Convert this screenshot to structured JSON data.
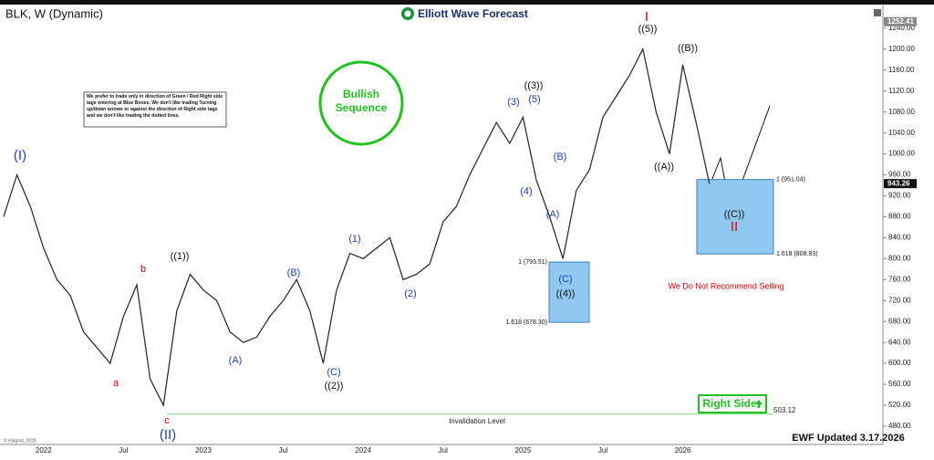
{
  "chart_data": {
    "type": "line",
    "title": "BLK, W (Dynamic)",
    "brand": "Elliott Wave Forecast",
    "categories": [
      null,
      null,
      null,
      "2022",
      null,
      null,
      null,
      null,
      null,
      "Jul",
      null,
      null,
      null,
      null,
      null,
      "2023",
      null,
      null,
      null,
      null,
      null,
      "Jul",
      null,
      null,
      null,
      null,
      null,
      "2024",
      null,
      null,
      null,
      null,
      null,
      "Jul",
      null,
      null,
      null,
      null,
      null,
      "2025",
      null,
      null,
      null,
      null,
      null,
      "Jul",
      null,
      null,
      null,
      null,
      null,
      "2026",
      null,
      null
    ],
    "values": [
      880,
      960,
      900,
      820,
      760,
      730,
      660,
      630,
      600,
      690,
      750,
      570,
      520,
      700,
      770,
      740,
      720,
      660,
      640,
      650,
      690,
      720,
      760,
      700,
      600,
      740,
      810,
      800,
      820,
      840,
      760,
      770,
      790,
      870,
      900,
      960,
      1010,
      1060,
      1020,
      1070,
      950,
      880,
      800,
      930,
      970,
      1070,
      1110,
      1150,
      1200,
      1080,
      1000,
      1170,
      1060,
      943
    ],
    "color": "#222222",
    "ylim": [
      445.1,
      1279.9
    ],
    "yticks": [
      {
        "value": 480,
        "label": "480.00"
      },
      {
        "value": 520,
        "label": "520.00"
      },
      {
        "value": 560,
        "label": "560.00"
      },
      {
        "value": 600,
        "label": "600.00"
      },
      {
        "value": 640,
        "label": "640.00"
      },
      {
        "value": 680,
        "label": "680.00"
      },
      {
        "value": 720,
        "label": "720.00"
      },
      {
        "value": 760,
        "label": "760.00"
      },
      {
        "value": 800,
        "label": "800.00"
      },
      {
        "value": 840,
        "label": "840.00"
      },
      {
        "value": 880,
        "label": "880.00"
      },
      {
        "value": 920,
        "label": "920.00"
      },
      {
        "value": 960,
        "label": "960.00"
      },
      {
        "value": 1000,
        "label": "1000.00"
      },
      {
        "value": 1040,
        "label": "1040.00"
      },
      {
        "value": 1080,
        "label": "1080.00"
      },
      {
        "value": 1120,
        "label": "1120.00"
      },
      {
        "value": 1160,
        "label": "1160.00"
      },
      {
        "value": 1200,
        "label": "1200.00"
      },
      {
        "value": 1240,
        "label": "1240.00"
      }
    ],
    "price_labels": [
      1252.41,
      943.26
    ],
    "fib_levels": [
      {
        "value": 793.51,
        "label": "1 (793.51)"
      },
      {
        "value": 678.3,
        "label": "1.618 (678.30)"
      },
      {
        "value": 951.04,
        "label": "1 (951.04)"
      },
      {
        "value": 808.93,
        "label": "1.618 (808.93)"
      }
    ],
    "invalidation": {
      "text": "Invalidation Level",
      "value": 503.12
    },
    "wave_labels": [
      {
        "text": "(I)",
        "color": "#1f3fbf"
      },
      {
        "text": "a",
        "color": "#e00000"
      },
      {
        "text": "b",
        "color": "#e00000"
      },
      {
        "text": "c",
        "color": "#e00000"
      },
      {
        "text": "(II)",
        "color": "#1f3fbf"
      },
      {
        "text": "((1))",
        "color": "#111111"
      },
      {
        "text": "(A)",
        "color": "#1f3fbf"
      },
      {
        "text": "(B)",
        "color": "#1f3fbf"
      },
      {
        "text": "(C)",
        "color": "#1f3fbf"
      },
      {
        "text": "((2))",
        "color": "#111111"
      },
      {
        "text": "(1)",
        "color": "#1f3fbf"
      },
      {
        "text": "(2)",
        "color": "#1f3fbf"
      },
      {
        "text": "(3)",
        "color": "#1f3fbf"
      },
      {
        "text": "((3))",
        "color": "#111111"
      },
      {
        "text": "(5)",
        "color": "#1f3fbf"
      },
      {
        "text": "(4)",
        "color": "#1f3fbf"
      },
      {
        "text": "(B)",
        "color": "#1f3fbf"
      },
      {
        "text": "(A)",
        "color": "#1f3fbf"
      },
      {
        "text": "(C)",
        "color": "#1f3fbf"
      },
      {
        "text": "((4))",
        "color": "#111111"
      },
      {
        "text": "I",
        "color": "#e00000"
      },
      {
        "text": "((5))",
        "color": "#111111"
      },
      {
        "text": "((A))",
        "color": "#111111"
      },
      {
        "text": "((B))",
        "color": "#111111"
      },
      {
        "text": "((C))",
        "color": "#111111"
      },
      {
        "text": "II",
        "color": "#e00000"
      }
    ],
    "bullish_note": "Bullish Sequence",
    "disclaimer": "We prefer to trade only in direction of Green / Red Right side tags entering at Blue Boxes. We don't like trading Turning up/down arrows or against the direction of Right side tags and we don't like trading the dotted lines.",
    "selling_note": "We Do Not Recommend Selling",
    "right_side": "Right Side",
    "updated": "EWF Updated 3.17.2026",
    "copyright": "© eSignal, 2026"
  }
}
